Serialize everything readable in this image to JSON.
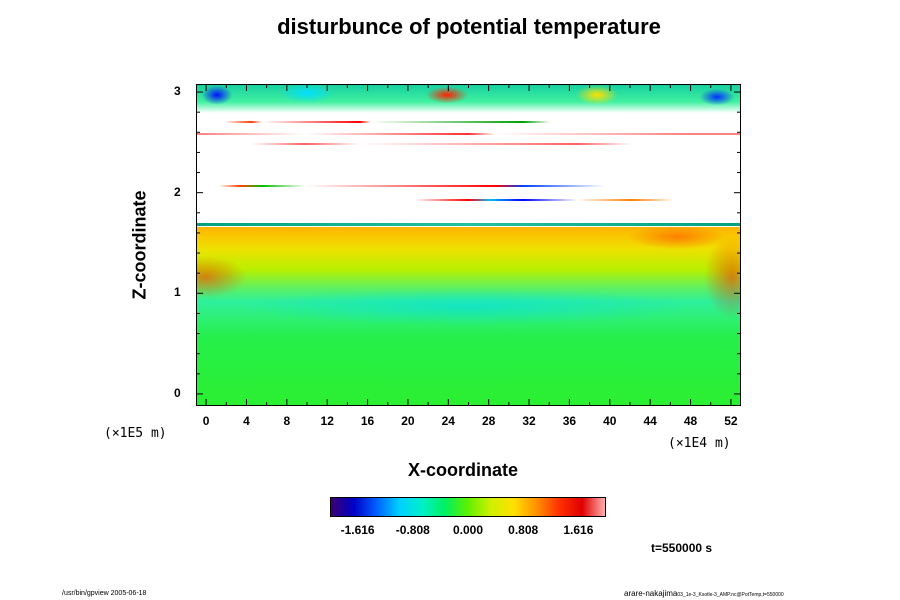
{
  "chart_data": {
    "type": "heatmap",
    "title": "disturbunce of potential temperature",
    "xlabel": "X-coordinate",
    "ylabel": "Z-coordinate",
    "x_unit": "(×1E4 m)",
    "y_unit": "(×1E5 m)",
    "x_ticks": [
      "0",
      "4",
      "8",
      "12",
      "16",
      "20",
      "24",
      "28",
      "32",
      "36",
      "40",
      "44",
      "48",
      "52"
    ],
    "y_ticks": [
      "0",
      "1",
      "2",
      "3"
    ],
    "xlim": [
      -1,
      53
    ],
    "ylim": [
      -0.12,
      3.08
    ],
    "colorbar": {
      "range": [
        -2.02,
        2.02
      ],
      "tick_labels": [
        "-1.616",
        "-0.808",
        "0.000",
        "0.808",
        "1.616"
      ],
      "colors": [
        "#3b006e",
        "#0000c8",
        "#0060ff",
        "#00d0ff",
        "#00f0c8",
        "#00f060",
        "#60f000",
        "#d0f000",
        "#ffe000",
        "#ff9000",
        "#ff3000",
        "#e00000",
        "#ffb0b0"
      ]
    },
    "time_label": "t=550000 s"
  },
  "footer": {
    "left": "/usr/bin/gpview 2005-06-18",
    "right": "arare-nakajima",
    "right_small": "03_1e-3_Ksotle-3_AMP.nc@PotTemp,t=550000"
  }
}
